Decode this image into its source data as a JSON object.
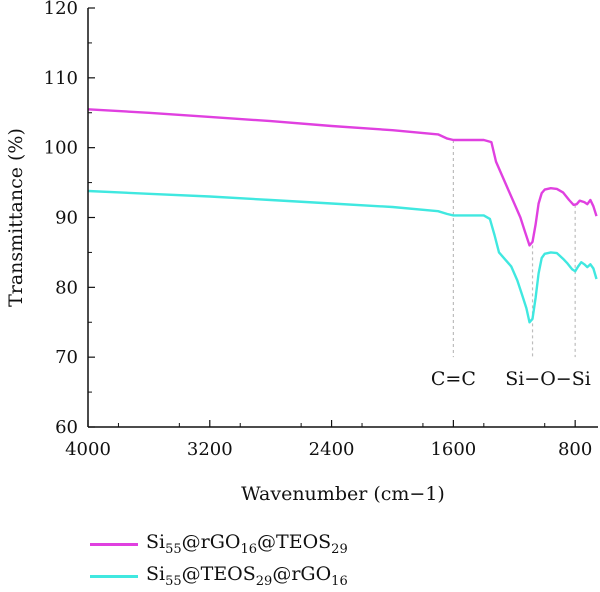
{
  "chart_data": {
    "type": "line",
    "xlabel": "Wavenumber (cm−1)",
    "ylabel": "Transmittance (%)",
    "xlim": [
      4000,
      650
    ],
    "ylim": [
      60,
      120
    ],
    "x_reversed": true,
    "x_ticks": [
      4000,
      3200,
      2400,
      1600,
      800
    ],
    "y_ticks": [
      60,
      70,
      80,
      90,
      100,
      110,
      120
    ],
    "series": [
      {
        "name": "Si55@rGO16@TEOS29",
        "color": "#e040e0",
        "points": [
          [
            4000,
            105.5
          ],
          [
            3600,
            105
          ],
          [
            3200,
            104.4
          ],
          [
            2800,
            103.8
          ],
          [
            2400,
            103.1
          ],
          [
            2000,
            102.5
          ],
          [
            1700,
            101.9
          ],
          [
            1640,
            101.3
          ],
          [
            1600,
            101.1
          ],
          [
            1500,
            101.1
          ],
          [
            1400,
            101.1
          ],
          [
            1350,
            100.8
          ],
          [
            1320,
            98
          ],
          [
            1280,
            96
          ],
          [
            1240,
            94
          ],
          [
            1200,
            92
          ],
          [
            1160,
            90
          ],
          [
            1130,
            88
          ],
          [
            1100,
            86
          ],
          [
            1080,
            86.5
          ],
          [
            1060,
            89
          ],
          [
            1040,
            92
          ],
          [
            1020,
            93.5
          ],
          [
            1000,
            94
          ],
          [
            960,
            94.2
          ],
          [
            920,
            94.1
          ],
          [
            880,
            93.6
          ],
          [
            840,
            92.5
          ],
          [
            810,
            91.8
          ],
          [
            790,
            91.9
          ],
          [
            770,
            92.4
          ],
          [
            740,
            92.2
          ],
          [
            720,
            91.9
          ],
          [
            700,
            92.5
          ],
          [
            680,
            91.6
          ],
          [
            660,
            90.2
          ]
        ]
      },
      {
        "name": "Si55@TEOS29@rGO16",
        "color": "#40e8e0",
        "points": [
          [
            4000,
            93.8
          ],
          [
            3600,
            93.4
          ],
          [
            3200,
            93
          ],
          [
            2800,
            92.5
          ],
          [
            2400,
            92
          ],
          [
            2000,
            91.5
          ],
          [
            1700,
            90.9
          ],
          [
            1640,
            90.5
          ],
          [
            1600,
            90.3
          ],
          [
            1500,
            90.3
          ],
          [
            1400,
            90.3
          ],
          [
            1360,
            89.8
          ],
          [
            1330,
            87.5
          ],
          [
            1300,
            85
          ],
          [
            1260,
            84
          ],
          [
            1220,
            83
          ],
          [
            1180,
            81
          ],
          [
            1150,
            79
          ],
          [
            1120,
            77
          ],
          [
            1100,
            75
          ],
          [
            1080,
            75.5
          ],
          [
            1060,
            78.5
          ],
          [
            1040,
            82
          ],
          [
            1020,
            84.2
          ],
          [
            1000,
            84.8
          ],
          [
            960,
            85
          ],
          [
            920,
            84.9
          ],
          [
            880,
            84.1
          ],
          [
            850,
            83.4
          ],
          [
            820,
            82.6
          ],
          [
            800,
            82.3
          ],
          [
            780,
            83
          ],
          [
            760,
            83.6
          ],
          [
            740,
            83.3
          ],
          [
            720,
            82.9
          ],
          [
            700,
            83.3
          ],
          [
            680,
            82.7
          ],
          [
            660,
            81.2
          ]
        ]
      }
    ],
    "annotations": [
      {
        "text": "C=C",
        "x": 1600,
        "y_top": 101.1,
        "y_bottom": 70
      },
      {
        "text": "Si−O−Si",
        "x": 1080,
        "y_top": 86,
        "y_bottom": 70
      },
      {
        "text": "",
        "x": 800,
        "y_top": 91.8,
        "y_bottom": 70
      }
    ]
  },
  "legend": [
    {
      "label_main": "Si",
      "sub1": "55",
      "mid1": "@rGO",
      "sub2": "16",
      "mid2": "@TEOS",
      "sub3": "29",
      "color": "#e040e0"
    },
    {
      "label_main": "Si",
      "sub1": "55",
      "mid1": "@TEOS",
      "sub2": "29",
      "mid2": "@rGO",
      "sub3": "16",
      "color": "#40e8e0"
    }
  ]
}
